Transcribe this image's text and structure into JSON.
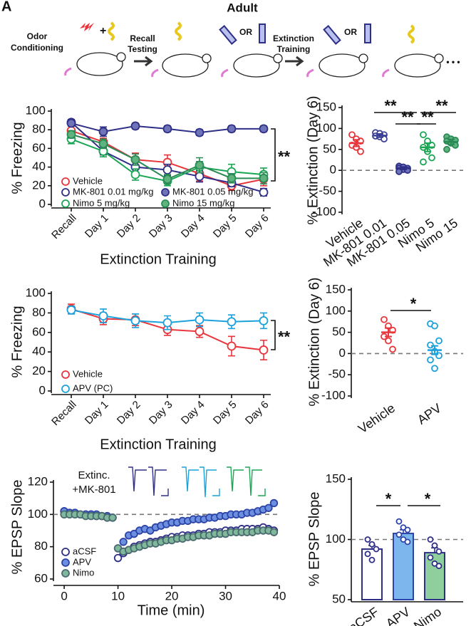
{
  "header": {
    "panel_label": "A",
    "title": "Adult",
    "steps": [
      [
        "Odor",
        "Conditioning"
      ],
      [
        "Recall",
        "Testing"
      ],
      [
        "Extinction",
        "Training"
      ]
    ],
    "or_label": "OR",
    "ellipsis": "• • •"
  },
  "chart_data": [
    {
      "type": "line",
      "y_label": "% Freezing",
      "x_label": "Extinction Training",
      "categories": [
        "Recall",
        "Day 1",
        "Day 2",
        "Day 3",
        "Day 4",
        "Day 5",
        "Day 6"
      ],
      "ylim": [
        0,
        100
      ],
      "yticks": [
        0,
        20,
        40,
        60,
        80,
        100
      ],
      "lines": true,
      "annotation": "**",
      "series": [
        {
          "name": "Vehicle",
          "color": "#e8343b",
          "fill": "#ffffff",
          "values": [
            79,
            67,
            48,
            45,
            33,
            20,
            27
          ],
          "errors": [
            5,
            4,
            7,
            8,
            8,
            5,
            7
          ]
        },
        {
          "name": "MK-801 0.01 mg/kg",
          "color": "#2e2f86",
          "fill": "#ffffff",
          "values": [
            88,
            57,
            40,
            37,
            30,
            23,
            13
          ],
          "errors": [
            3,
            4,
            8,
            6,
            6,
            4,
            4
          ]
        },
        {
          "name": "Nimo 5 mg/kg",
          "color": "#1aa654",
          "fill": "#ffffff",
          "values": [
            70,
            57,
            32,
            25,
            40,
            35,
            32
          ],
          "errors": [
            5,
            6,
            6,
            5,
            6,
            8,
            7
          ]
        },
        {
          "name": "MK-801 0.05 mg/kg",
          "color": "#2e2f86",
          "fill": "#6f73b8",
          "values": [
            87,
            78,
            84,
            81,
            77,
            81,
            81
          ],
          "errors": [
            3,
            5,
            3,
            3,
            3,
            3,
            3
          ]
        },
        {
          "name": "Nimo 15 mg/kg",
          "color": "#2a8a55",
          "fill": "#5fb37e",
          "values": [
            75,
            65,
            48,
            27,
            42,
            28,
            28
          ],
          "errors": [
            4,
            5,
            6,
            5,
            8,
            5,
            6
          ]
        }
      ]
    },
    {
      "type": "dot",
      "y_label": "% Extinction (Day 6)",
      "ylim": [
        -100,
        150
      ],
      "yticks": [
        -100,
        -50,
        0,
        50,
        100,
        150
      ],
      "reference_line": 0,
      "annotations": [
        "**",
        "**",
        "**",
        "**"
      ],
      "groups": [
        {
          "name": "Vehicle",
          "color": "#e8343b",
          "fill": "#ffffff",
          "mean": 65,
          "sem": 8,
          "points": [
            85,
            75,
            70,
            60,
            55,
            45
          ]
        },
        {
          "name": "MK-801 0.01",
          "color": "#3a3f96",
          "fill": "#ffffff",
          "mean": 83,
          "sem": 4,
          "points": [
            90,
            88,
            85,
            82,
            80,
            75
          ]
        },
        {
          "name": "MK-801 0.05",
          "color": "#2e2f86",
          "fill": "#6f73b8",
          "mean": 5,
          "sem": 3,
          "points": [
            10,
            8,
            5,
            5,
            2,
            0,
            -3
          ]
        },
        {
          "name": "Nimo 5",
          "color": "#1aa654",
          "fill": "#ffffff",
          "mean": 55,
          "sem": 10,
          "points": [
            85,
            70,
            60,
            55,
            45,
            30,
            20
          ]
        },
        {
          "name": "Nimo 15",
          "color": "#2a8a55",
          "fill": "#5fb37e",
          "mean": 68,
          "sem": 6,
          "points": [
            80,
            75,
            72,
            70,
            65,
            60,
            50
          ]
        }
      ]
    },
    {
      "type": "line",
      "y_label": "% Freezing",
      "x_label": "Extinction Training",
      "categories": [
        "Recall",
        "Day 1",
        "Day 2",
        "Day 3",
        "Day 4",
        "Day 5",
        "Day 6"
      ],
      "ylim": [
        0,
        100
      ],
      "yticks": [
        0,
        20,
        40,
        60,
        80,
        100
      ],
      "lines": true,
      "annotation": "**",
      "series": [
        {
          "name": "Vehicle",
          "color": "#e8343b",
          "fill": "#ffffff",
          "values": [
            84,
            74,
            73,
            63,
            61,
            46,
            42
          ],
          "errors": [
            5,
            6,
            6,
            6,
            6,
            10,
            10
          ]
        },
        {
          "name": "APV (PC)",
          "color": "#1ba1db",
          "fill": "#ffffff",
          "values": [
            83,
            77,
            72,
            70,
            73,
            71,
            72
          ],
          "errors": [
            4,
            7,
            7,
            7,
            7,
            7,
            8
          ]
        }
      ]
    },
    {
      "type": "dot",
      "y_label": "% Extinction (Day 6)",
      "ylim": [
        -100,
        150
      ],
      "yticks": [
        -100,
        -50,
        0,
        50,
        100,
        150
      ],
      "reference_line": 0,
      "annotations": [
        "*"
      ],
      "groups": [
        {
          "name": "Vehicle",
          "color": "#e8343b",
          "fill": "#ffffff",
          "mean": 50,
          "sem": 10,
          "points": [
            80,
            65,
            55,
            40,
            30,
            10
          ]
        },
        {
          "name": "APV",
          "color": "#1ba1db",
          "fill": "#ffffff",
          "mean": 8,
          "sem": 10,
          "points": [
            70,
            65,
            30,
            20,
            5,
            -5,
            -15,
            -35
          ]
        }
      ]
    },
    {
      "type": "line",
      "y_label": "% EPSP Slope",
      "x_label": "Time (min)",
      "note": [
        "Extinc.",
        "+MK-801"
      ],
      "xlim": [
        -2,
        40
      ],
      "xticks": [
        0,
        10,
        20,
        30,
        40
      ],
      "ylim": [
        60,
        120
      ],
      "yticks": [
        60,
        80,
        100,
        120
      ],
      "reference_line": 100,
      "lines": false,
      "x": [
        0,
        1,
        2,
        3,
        4,
        5,
        6,
        7,
        8,
        9,
        10,
        11,
        12,
        13,
        14,
        15,
        16,
        17,
        18,
        19,
        20,
        21,
        22,
        23,
        24,
        25,
        26,
        27,
        28,
        29,
        30,
        31,
        32,
        33,
        34,
        35,
        36,
        37,
        38,
        39
      ],
      "series": [
        {
          "name": "aCSF",
          "color": "#2e2f86",
          "fill": "#ffffff",
          "values": [
            102,
            101,
            101,
            100,
            100,
            100,
            99,
            99,
            98,
            98,
            73,
            76,
            78,
            80,
            81,
            82,
            83,
            83,
            84,
            85,
            86,
            86,
            87,
            87,
            87,
            88,
            88,
            89,
            89,
            89,
            90,
            90,
            90,
            91,
            91,
            91,
            91,
            92,
            91,
            90
          ]
        },
        {
          "name": "APV",
          "color": "#2c44a8",
          "fill": "#6d8fe0",
          "values": [
            102,
            101,
            101,
            100,
            100,
            100,
            100,
            99,
            99,
            98,
            79,
            83,
            87,
            88,
            90,
            91,
            90,
            92,
            93,
            94,
            95,
            95,
            96,
            96,
            97,
            97,
            97,
            98,
            98,
            99,
            99,
            100,
            100,
            100,
            101,
            101,
            102,
            103,
            104,
            107
          ]
        },
        {
          "name": "Nimo",
          "color": "#4a6a70",
          "fill": "#7fb89a",
          "values": [
            100,
            100,
            100,
            100,
            99,
            99,
            99,
            99,
            98,
            98,
            79,
            77,
            78,
            79,
            80,
            81,
            82,
            82,
            83,
            84,
            84,
            85,
            85,
            86,
            86,
            87,
            87,
            87,
            88,
            88,
            88,
            89,
            89,
            89,
            89,
            89,
            90,
            90,
            90,
            89
          ]
        }
      ]
    },
    {
      "type": "bar",
      "y_label": "% EPSP Slope",
      "ylim": [
        50,
        150
      ],
      "yticks": [
        50,
        100,
        150
      ],
      "reference_line": 100,
      "annotations": [
        "*",
        "*"
      ],
      "categories": [
        "aCSF",
        "APV",
        "Nimo"
      ],
      "values": [
        92,
        105,
        89
      ],
      "errors": [
        3,
        3,
        4
      ],
      "colors": [
        "#ffffff",
        "#7cb6ec",
        "#8fcf9e"
      ],
      "edge_colors": [
        "#2e2f86",
        "#2c44a8",
        "#2e2f86"
      ],
      "points": [
        [
          100,
          96,
          92,
          88,
          83
        ],
        [
          115,
          110,
          108,
          104,
          100,
          98
        ],
        [
          100,
          95,
          90,
          85,
          80,
          78
        ]
      ]
    }
  ]
}
